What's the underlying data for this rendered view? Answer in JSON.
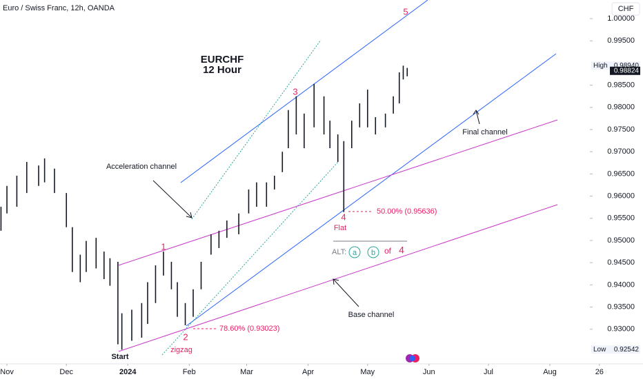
{
  "chart_data": {
    "type": "ohlc",
    "title": "Euro / Swiss Franc, 12h, OANDA",
    "heading": "EURCHF",
    "subheading": "12 Hour",
    "currency": "CHF",
    "color": "#131722",
    "x": [
      -3,
      0,
      5,
      10,
      16,
      19,
      24,
      30,
      33,
      37,
      40,
      45,
      49,
      52,
      56,
      58,
      63,
      68,
      71,
      75,
      79,
      83,
      86,
      90,
      94,
      98,
      103,
      107,
      111,
      117,
      122,
      126,
      131,
      135,
      139,
      142,
      146,
      150,
      155,
      160,
      163,
      167,
      170,
      174,
      178,
      182,
      186,
      191,
      195,
      198,
      200,
      202
    ],
    "high": [
      0.9576,
      0.9623,
      0.9646,
      0.9677,
      0.9669,
      0.9685,
      0.9662,
      0.9607,
      0.953,
      0.9468,
      0.9499,
      0.9506,
      0.9475,
      0.946,
      0.9452,
      0.9336,
      0.9344,
      0.9359,
      0.9406,
      0.9444,
      0.9475,
      0.9452,
      0.9406,
      0.9359,
      0.939,
      0.9452,
      0.9514,
      0.9522,
      0.9545,
      0.9561,
      0.9615,
      0.9631,
      0.9631,
      0.9646,
      0.97,
      0.9794,
      0.9825,
      0.9786,
      0.9853,
      0.9825,
      0.977,
      0.9739,
      0.9724,
      0.977,
      0.9809,
      0.984,
      0.9778,
      0.9786,
      0.9825,
      0.9879,
      0.9894,
      0.9889
    ],
    "low": [
      0.9522,
      0.9561,
      0.9576,
      0.9607,
      0.9623,
      0.9631,
      0.9607,
      0.953,
      0.9429,
      0.9406,
      0.9429,
      0.9437,
      0.9413,
      0.9398,
      0.9266,
      0.9254,
      0.9274,
      0.9281,
      0.9312,
      0.9359,
      0.9421,
      0.939,
      0.9328,
      0.9309,
      0.9328,
      0.939,
      0.9468,
      0.9483,
      0.9506,
      0.9514,
      0.9561,
      0.9576,
      0.9576,
      0.9615,
      0.9654,
      0.9708,
      0.9739,
      0.9708,
      0.9755,
      0.9739,
      0.9708,
      0.9677,
      0.9564,
      0.9708,
      0.9755,
      0.9755,
      0.9739,
      0.9755,
      0.9786,
      0.9809,
      0.9863,
      0.987
    ],
    "xlim": [
      -3.5,
      321
    ],
    "xticks": [
      {
        "value": 0,
        "label": "Nov"
      },
      {
        "value": 30,
        "label": "Dec"
      },
      {
        "value": 61,
        "label": "2024"
      },
      {
        "value": 92,
        "label": "Feb"
      },
      {
        "value": 121,
        "label": "Mar"
      },
      {
        "value": 152,
        "label": "Apr"
      },
      {
        "value": 182,
        "label": "May"
      },
      {
        "value": 213,
        "label": "Jun"
      },
      {
        "value": 243,
        "label": "Jul"
      },
      {
        "value": 274,
        "label": "Aug"
      },
      {
        "value": 299,
        "label": "26"
      }
    ],
    "ylim": [
      0.9222,
      1.0042
    ],
    "yticks": [
      {
        "value": 1.0,
        "label": "1.00000"
      },
      {
        "value": 0.995,
        "label": "0.99500"
      },
      {
        "value": 0.985,
        "label": "0.98500"
      },
      {
        "value": 0.98,
        "label": "0.98000"
      },
      {
        "value": 0.975,
        "label": "0.97500"
      },
      {
        "value": 0.97,
        "label": "0.97000"
      },
      {
        "value": 0.965,
        "label": "0.96500"
      },
      {
        "value": 0.96,
        "label": "0.96000"
      },
      {
        "value": 0.955,
        "label": "0.95500"
      },
      {
        "value": 0.95,
        "label": "0.95000"
      },
      {
        "value": 0.945,
        "label": "0.94500"
      },
      {
        "value": 0.94,
        "label": "0.94000"
      },
      {
        "value": 0.935,
        "label": "0.93500"
      },
      {
        "value": 0.93,
        "label": "0.93000"
      }
    ],
    "price_tags": [
      {
        "name": "High",
        "value": 0.9894,
        "label": "0.98940"
      },
      {
        "value": 0.98824,
        "label": "0.98824"
      },
      {
        "name": "Low",
        "value": 0.92542,
        "label": "0.92542"
      }
    ],
    "annotations": {
      "wave1": "1",
      "wave2": "2",
      "wave3": "3",
      "wave4": "4",
      "wave5": "5",
      "start": "Start",
      "zigzag": "zigzag",
      "flat": "Flat",
      "fib1": "78.60% (0.93023)",
      "fib2": "50.00% (0.95636)",
      "acceleration": "Acceleration channel",
      "final": "Final channel",
      "base": "Base channel",
      "alt": "ALT:",
      "alt_a": "a",
      "alt_b": "b",
      "alt_of": "of",
      "alt_4": "4"
    }
  }
}
